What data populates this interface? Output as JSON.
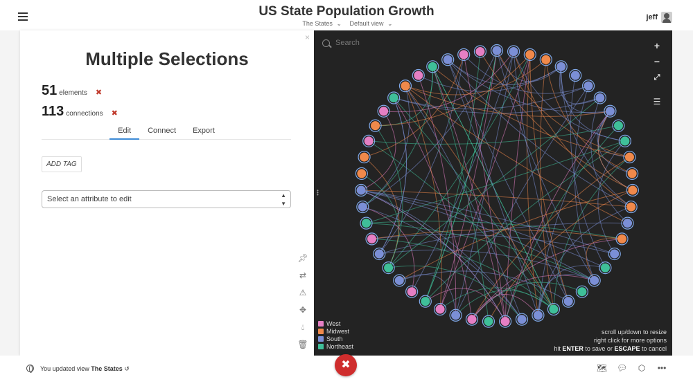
{
  "header": {
    "title": "US State Population Growth",
    "map_label": "The States",
    "view_label": "Default view",
    "user": "jeff"
  },
  "panel": {
    "title": "Multiple Selections",
    "elements_count": "51",
    "elements_label": "elements",
    "connections_count": "113",
    "connections_label": "connections",
    "tabs": [
      "Edit",
      "Connect",
      "Export"
    ],
    "add_tag": "ADD TAG",
    "select_placeholder": "Select an attribute to edit"
  },
  "graph": {
    "search_placeholder": "Search",
    "legend": [
      {
        "label": "West",
        "color": "#e57fc4"
      },
      {
        "label": "Midwest",
        "color": "#f0894b"
      },
      {
        "label": "South",
        "color": "#7b8fd6"
      },
      {
        "label": "Northeast",
        "color": "#3fbf99"
      }
    ],
    "hint_1": "scroll up/down to resize",
    "hint_2": "right click for more options",
    "hint_3_prefix": "hit",
    "hint_3_enter": "ENTER",
    "hint_3_mid": "to save or",
    "hint_3_escape": "ESCAPE",
    "hint_3_suffix": "to cancel",
    "node_regions": [
      "South",
      "South",
      "Midwest",
      "Midwest",
      "South",
      "South",
      "South",
      "South",
      "South",
      "Northeast",
      "Northeast",
      "Midwest",
      "Midwest",
      "Midwest",
      "Midwest",
      "South",
      "Midwest",
      "South",
      "Northeast",
      "South",
      "Northeast",
      "South",
      "Northeast",
      "South",
      "South",
      "West",
      "Northeast",
      "West",
      "South",
      "West",
      "Northeast",
      "West",
      "South",
      "Northeast",
      "South",
      "West",
      "Northeast",
      "South",
      "South",
      "Midwest",
      "Midwest",
      "West",
      "Midwest",
      "West",
      "Northeast",
      "Midwest",
      "West",
      "Northeast",
      "South",
      "West",
      "West"
    ]
  },
  "footer": {
    "message_prefix": "You updated view",
    "message_view": "The States"
  }
}
